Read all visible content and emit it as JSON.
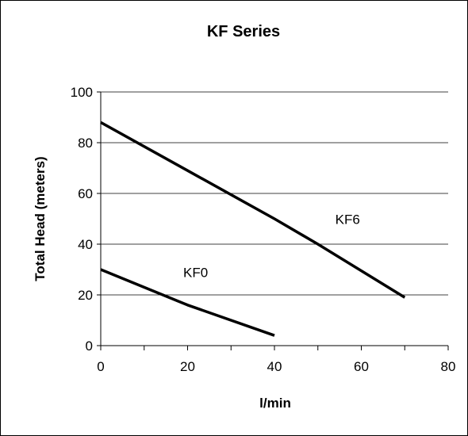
{
  "chart_data": {
    "type": "line",
    "title": "KF Series",
    "xlabel": "l/min",
    "ylabel": "Total Head (meters)",
    "xlim": [
      0,
      80
    ],
    "ylim": [
      0,
      100
    ],
    "x_ticks": [
      0,
      20,
      40,
      60,
      80
    ],
    "y_ticks": [
      0,
      20,
      40,
      60,
      80,
      100
    ],
    "grid": "horizontal",
    "series": [
      {
        "name": "KF6",
        "x": [
          0,
          20,
          40,
          50,
          70
        ],
        "y": [
          88,
          69,
          50,
          40,
          19
        ],
        "color": "#000000"
      },
      {
        "name": "KF0",
        "x": [
          0,
          20,
          40
        ],
        "y": [
          30,
          16,
          4
        ],
        "color": "#000000"
      }
    ],
    "annotations": [
      {
        "text": "KF6",
        "x": 54,
        "y": 48
      },
      {
        "text": "KF0",
        "x": 19,
        "y": 27
      }
    ]
  }
}
